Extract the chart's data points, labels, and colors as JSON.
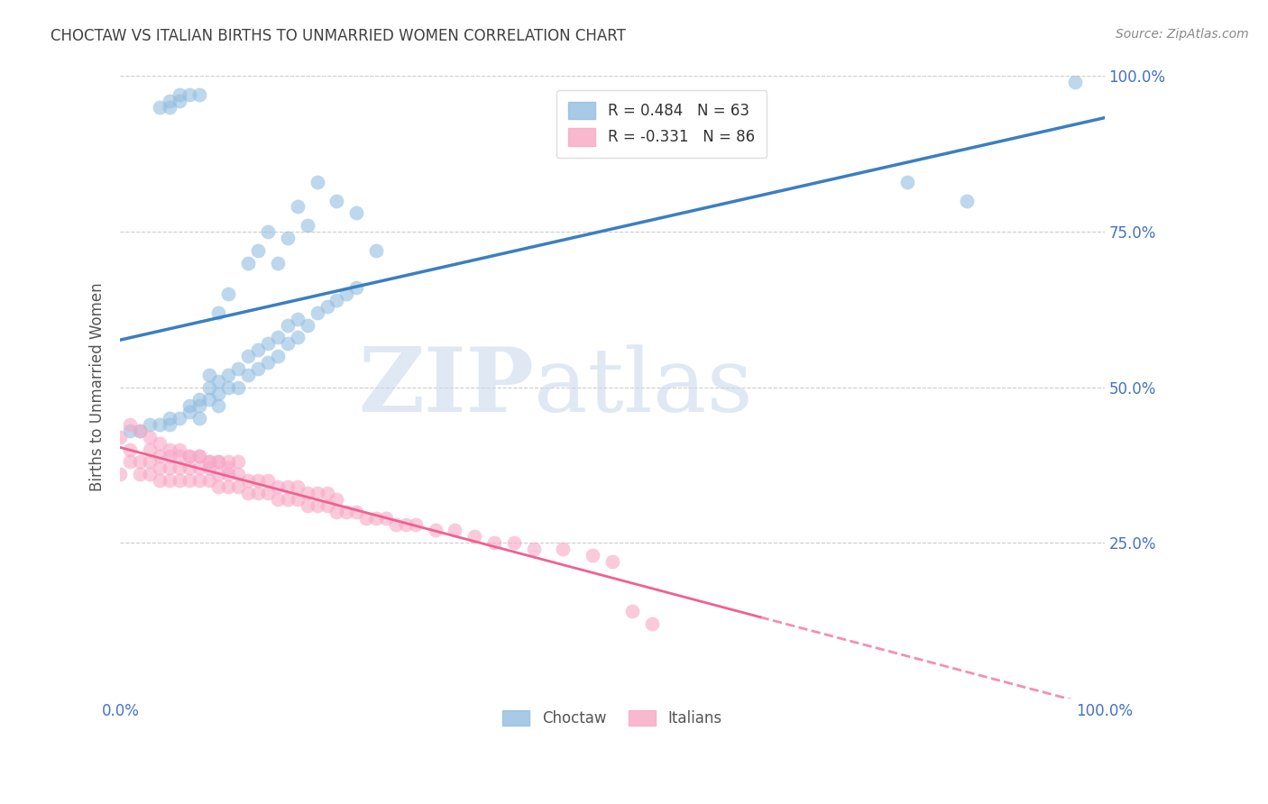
{
  "title": "CHOCTAW VS ITALIAN BIRTHS TO UNMARRIED WOMEN CORRELATION CHART",
  "source": "Source: ZipAtlas.com",
  "ylabel": "Births to Unmarried Women",
  "watermark_zip": "ZIP",
  "watermark_atlas": "atlas",
  "legend_choctaw": "R = 0.484   N = 63",
  "legend_italians": "R = -0.331   N = 86",
  "choctaw_color": "#92bde0",
  "italians_color": "#f7a8c4",
  "line_choctaw_color": "#3a7fc1",
  "line_italians_color": "#f06090",
  "tick_color": "#4472c4",
  "title_color": "#404040",
  "source_color": "#888888",
  "ylabel_color": "#555555",
  "choctaw_x": [
    0.01,
    0.02,
    0.03,
    0.04,
    0.05,
    0.05,
    0.06,
    0.07,
    0.07,
    0.08,
    0.08,
    0.08,
    0.09,
    0.09,
    0.09,
    0.1,
    0.1,
    0.1,
    0.11,
    0.11,
    0.12,
    0.12,
    0.13,
    0.13,
    0.14,
    0.14,
    0.15,
    0.15,
    0.16,
    0.16,
    0.17,
    0.17,
    0.18,
    0.18,
    0.19,
    0.2,
    0.21,
    0.22,
    0.23,
    0.24,
    0.1,
    0.11,
    0.13,
    0.14,
    0.15,
    0.18,
    0.2,
    0.22,
    0.24,
    0.26,
    0.04,
    0.05,
    0.05,
    0.06,
    0.06,
    0.07,
    0.08,
    0.16,
    0.17,
    0.19,
    0.8,
    0.86,
    0.97
  ],
  "choctaw_y": [
    0.43,
    0.43,
    0.44,
    0.44,
    0.44,
    0.45,
    0.45,
    0.46,
    0.47,
    0.45,
    0.47,
    0.48,
    0.48,
    0.5,
    0.52,
    0.47,
    0.49,
    0.51,
    0.5,
    0.52,
    0.5,
    0.53,
    0.52,
    0.55,
    0.53,
    0.56,
    0.54,
    0.57,
    0.55,
    0.58,
    0.57,
    0.6,
    0.58,
    0.61,
    0.6,
    0.62,
    0.63,
    0.64,
    0.65,
    0.66,
    0.62,
    0.65,
    0.7,
    0.72,
    0.75,
    0.79,
    0.83,
    0.8,
    0.78,
    0.72,
    0.95,
    0.95,
    0.96,
    0.96,
    0.97,
    0.97,
    0.97,
    0.7,
    0.74,
    0.76,
    0.83,
    0.8,
    0.99
  ],
  "italians_x": [
    0.0,
    0.01,
    0.01,
    0.02,
    0.02,
    0.03,
    0.03,
    0.03,
    0.04,
    0.04,
    0.04,
    0.05,
    0.05,
    0.05,
    0.06,
    0.06,
    0.06,
    0.07,
    0.07,
    0.07,
    0.08,
    0.08,
    0.08,
    0.09,
    0.09,
    0.09,
    0.1,
    0.1,
    0.1,
    0.11,
    0.11,
    0.11,
    0.12,
    0.12,
    0.12,
    0.13,
    0.13,
    0.14,
    0.14,
    0.15,
    0.15,
    0.16,
    0.16,
    0.17,
    0.17,
    0.18,
    0.18,
    0.19,
    0.19,
    0.2,
    0.2,
    0.21,
    0.21,
    0.22,
    0.22,
    0.23,
    0.24,
    0.25,
    0.26,
    0.27,
    0.28,
    0.29,
    0.3,
    0.32,
    0.34,
    0.36,
    0.38,
    0.4,
    0.42,
    0.45,
    0.48,
    0.5,
    0.0,
    0.01,
    0.02,
    0.03,
    0.04,
    0.05,
    0.06,
    0.07,
    0.08,
    0.09,
    0.1,
    0.11,
    0.52,
    0.54
  ],
  "italians_y": [
    0.36,
    0.38,
    0.4,
    0.36,
    0.38,
    0.36,
    0.38,
    0.4,
    0.35,
    0.37,
    0.39,
    0.35,
    0.37,
    0.39,
    0.35,
    0.37,
    0.39,
    0.35,
    0.37,
    0.39,
    0.35,
    0.37,
    0.39,
    0.35,
    0.37,
    0.38,
    0.34,
    0.36,
    0.38,
    0.34,
    0.36,
    0.38,
    0.34,
    0.36,
    0.38,
    0.33,
    0.35,
    0.33,
    0.35,
    0.33,
    0.35,
    0.32,
    0.34,
    0.32,
    0.34,
    0.32,
    0.34,
    0.31,
    0.33,
    0.31,
    0.33,
    0.31,
    0.33,
    0.3,
    0.32,
    0.3,
    0.3,
    0.29,
    0.29,
    0.29,
    0.28,
    0.28,
    0.28,
    0.27,
    0.27,
    0.26,
    0.25,
    0.25,
    0.24,
    0.24,
    0.23,
    0.22,
    0.42,
    0.44,
    0.43,
    0.42,
    0.41,
    0.4,
    0.4,
    0.39,
    0.39,
    0.38,
    0.38,
    0.37,
    0.14,
    0.12
  ],
  "xlim": [
    0.0,
    1.0
  ],
  "ylim": [
    0.0,
    1.0
  ],
  "right_yticks": [
    0.25,
    0.5,
    0.75,
    1.0
  ],
  "right_ytick_labels": [
    "25.0%",
    "50.0%",
    "75.0%",
    "100.0%"
  ],
  "grid_yticks": [
    0.25,
    0.5,
    0.75,
    1.0
  ],
  "left_ytick_labels": [
    ""
  ],
  "bottom_legend_labels": [
    "Choctaw",
    "Italians"
  ]
}
